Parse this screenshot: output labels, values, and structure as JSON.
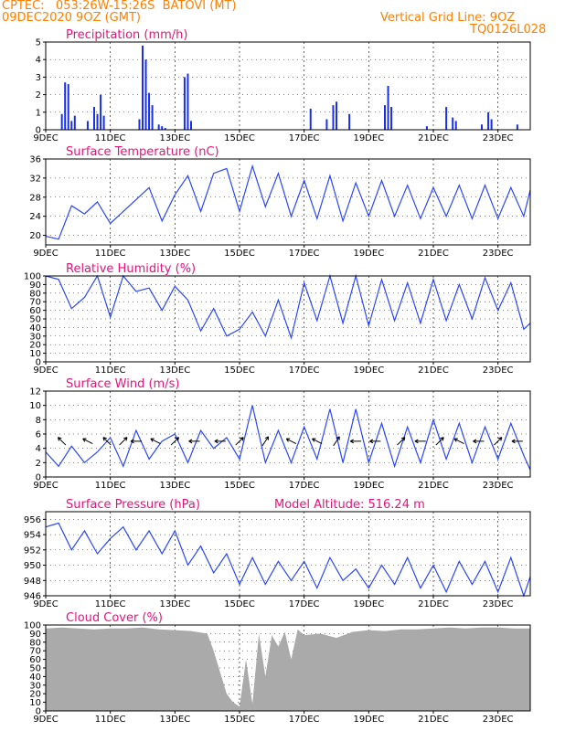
{
  "header": {
    "line1_left": "CPTEC:   053:26W-15:26S  BATOVI (MT)",
    "line2_left": "09DEC2020 9OZ (GMT)",
    "line1_right": "Vertical Grid Line: 9OZ",
    "line2_right": "TQ0126L028"
  },
  "x_axis": {
    "tick_labels": [
      "9DEC",
      "11DEC",
      "13DEC",
      "15DEC",
      "17DEC",
      "19DEC",
      "21DEC",
      "23DEC"
    ],
    "tick_days": [
      0,
      2,
      4,
      6,
      8,
      10,
      12,
      14
    ],
    "day_min": 0,
    "day_max": 15
  },
  "chart_data": [
    {
      "type": "bar",
      "title": "Precipitation (mm/h)",
      "ylim": [
        0,
        5
      ],
      "yticks": [
        "0",
        "1",
        "2",
        "3",
        "4",
        "5"
      ],
      "x_days": [
        0.5,
        0.6,
        0.7,
        0.8,
        0.9,
        1.3,
        1.5,
        1.6,
        1.7,
        1.8,
        2.9,
        3.0,
        3.1,
        3.2,
        3.3,
        3.5,
        3.6,
        3.7,
        4.3,
        4.4,
        4.5,
        8.2,
        8.7,
        8.9,
        9.0,
        9.4,
        10.5,
        10.6,
        10.7,
        11.8,
        12.4,
        12.6,
        12.7,
        13.5,
        13.7,
        13.8,
        14.6
      ],
      "values": [
        0.9,
        2.7,
        2.6,
        0.5,
        0.8,
        0.5,
        1.3,
        0.9,
        2.0,
        0.8,
        0.6,
        4.8,
        4.0,
        2.1,
        1.4,
        0.3,
        0.2,
        0.1,
        3.0,
        3.2,
        0.5,
        1.2,
        0.6,
        1.4,
        1.6,
        0.9,
        1.4,
        2.5,
        1.3,
        0.2,
        1.3,
        0.7,
        0.5,
        0.3,
        1.0,
        0.6,
        0.3
      ]
    },
    {
      "type": "line",
      "title": "Surface Temperature (nC)",
      "ylim": [
        18,
        36
      ],
      "yticks": [
        "20",
        "24",
        "28",
        "32",
        "36"
      ],
      "x_days": [
        0,
        0.4,
        0.8,
        1.2,
        1.6,
        2.0,
        2.4,
        2.8,
        3.2,
        3.6,
        4.0,
        4.4,
        4.8,
        5.2,
        5.6,
        6.0,
        6.4,
        6.8,
        7.2,
        7.6,
        8.0,
        8.4,
        8.8,
        9.2,
        9.6,
        10.0,
        10.4,
        10.8,
        11.2,
        11.6,
        12.0,
        12.4,
        12.8,
        13.2,
        13.6,
        14.0,
        14.4,
        14.8,
        15.0
      ],
      "values": [
        19.8,
        19.2,
        26.2,
        24.5,
        27.0,
        22.5,
        25.0,
        27.5,
        30.0,
        23.0,
        28.5,
        32.5,
        25.0,
        33.0,
        34.0,
        25.0,
        34.5,
        26.0,
        33.0,
        24.0,
        31.5,
        23.5,
        32.5,
        23.0,
        31.0,
        24.0,
        31.5,
        24.0,
        30.5,
        23.5,
        30.0,
        24.0,
        30.5,
        23.5,
        30.5,
        23.5,
        30.0,
        24.0,
        29.5
      ]
    },
    {
      "type": "line",
      "title": "Relative Humidity (%)",
      "ylim": [
        0,
        100
      ],
      "yticks": [
        "0",
        "10",
        "20",
        "30",
        "40",
        "50",
        "60",
        "70",
        "80",
        "90",
        "100"
      ],
      "x_days": [
        0,
        0.4,
        0.8,
        1.2,
        1.6,
        2.0,
        2.4,
        2.8,
        3.2,
        3.6,
        4.0,
        4.4,
        4.8,
        5.2,
        5.6,
        6.0,
        6.4,
        6.8,
        7.2,
        7.6,
        8.0,
        8.4,
        8.8,
        9.2,
        9.6,
        10.0,
        10.4,
        10.8,
        11.2,
        11.6,
        12.0,
        12.4,
        12.8,
        13.2,
        13.6,
        14.0,
        14.4,
        14.8,
        15.0
      ],
      "values": [
        100,
        96,
        62,
        75,
        100,
        52,
        100,
        82,
        86,
        60,
        88,
        72,
        36,
        62,
        30,
        38,
        58,
        30,
        72,
        28,
        92,
        48,
        100,
        45,
        100,
        42,
        96,
        48,
        92,
        45,
        96,
        48,
        90,
        50,
        98,
        60,
        92,
        38,
        45
      ]
    },
    {
      "type": "line",
      "title": "Surface Wind (m/s)",
      "ylim": [
        0,
        12
      ],
      "yticks": [
        "0",
        "2",
        "4",
        "6",
        "8",
        "10",
        "12"
      ],
      "x_days": [
        0,
        0.4,
        0.8,
        1.2,
        1.6,
        2.0,
        2.4,
        2.8,
        3.2,
        3.6,
        4.0,
        4.4,
        4.8,
        5.2,
        5.6,
        6.0,
        6.4,
        6.8,
        7.2,
        7.6,
        8.0,
        8.4,
        8.8,
        9.2,
        9.6,
        10.0,
        10.4,
        10.8,
        11.2,
        11.6,
        12.0,
        12.4,
        12.8,
        13.2,
        13.6,
        14.0,
        14.4,
        14.8,
        15.0
      ],
      "values": [
        3.5,
        1.5,
        4.3,
        2.0,
        3.5,
        5.5,
        1.5,
        6.5,
        2.5,
        5.0,
        6.0,
        2.0,
        6.5,
        4.0,
        5.5,
        2.5,
        10.0,
        2.0,
        6.5,
        2.0,
        7.0,
        2.5,
        9.5,
        2.0,
        9.5,
        2.0,
        7.5,
        1.5,
        7.0,
        2.0,
        8.0,
        2.5,
        7.5,
        2.0,
        7.0,
        2.5,
        7.5,
        3.0,
        1.0
      ],
      "arrows": [
        {
          "day": 0.5,
          "u": -1,
          "v": 1
        },
        {
          "day": 1.3,
          "u": -1,
          "v": 0.5
        },
        {
          "day": 1.9,
          "u": -1,
          "v": 1
        },
        {
          "day": 2.4,
          "u": 1,
          "v": 1
        },
        {
          "day": 2.8,
          "u": -1,
          "v": 0
        },
        {
          "day": 3.4,
          "u": -1,
          "v": 0.5
        },
        {
          "day": 4.0,
          "u": 1,
          "v": 1
        },
        {
          "day": 4.6,
          "u": -1,
          "v": 0
        },
        {
          "day": 5.4,
          "u": -1,
          "v": 0
        },
        {
          "day": 6.0,
          "u": 1,
          "v": 1
        },
        {
          "day": 6.8,
          "u": 1,
          "v": 1.5
        },
        {
          "day": 7.6,
          "u": -1,
          "v": 0.5
        },
        {
          "day": 8.4,
          "u": -1,
          "v": 0.5
        },
        {
          "day": 9.0,
          "u": 1,
          "v": 1.5
        },
        {
          "day": 9.6,
          "u": -1,
          "v": 0
        },
        {
          "day": 10.2,
          "u": -1,
          "v": 0
        },
        {
          "day": 11.0,
          "u": 1,
          "v": 1
        },
        {
          "day": 11.6,
          "u": -1,
          "v": 0
        },
        {
          "day": 12.2,
          "u": 1,
          "v": 1
        },
        {
          "day": 12.8,
          "u": -1,
          "v": 0.5
        },
        {
          "day": 13.4,
          "u": -1,
          "v": 0
        },
        {
          "day": 14.0,
          "u": 1,
          "v": 1
        },
        {
          "day": 14.6,
          "u": -1,
          "v": 0
        }
      ]
    },
    {
      "type": "line",
      "title": "Surface Pressure (hPa)",
      "subtitle": "Model Altitude: 516.24 m",
      "ylim": [
        946,
        957
      ],
      "yticks": [
        "946",
        "948",
        "950",
        "952",
        "954",
        "956"
      ],
      "x_days": [
        0,
        0.4,
        0.8,
        1.2,
        1.6,
        2.0,
        2.4,
        2.8,
        3.2,
        3.6,
        4.0,
        4.4,
        4.8,
        5.2,
        5.6,
        6.0,
        6.4,
        6.8,
        7.2,
        7.6,
        8.0,
        8.4,
        8.8,
        9.2,
        9.6,
        10.0,
        10.4,
        10.8,
        11.2,
        11.6,
        12.0,
        12.4,
        12.8,
        13.2,
        13.6,
        14.0,
        14.4,
        14.8,
        15.0
      ],
      "values": [
        955.0,
        955.5,
        952.0,
        954.5,
        951.5,
        953.5,
        955.0,
        952.0,
        954.5,
        951.5,
        954.5,
        950.0,
        952.5,
        949.0,
        951.5,
        947.5,
        951.0,
        947.5,
        950.5,
        948.0,
        950.5,
        947.0,
        951.0,
        948.0,
        949.5,
        947.0,
        950.0,
        947.5,
        951.0,
        947.0,
        950.0,
        946.5,
        950.5,
        947.5,
        950.5,
        946.5,
        951.0,
        946.0,
        948.5
      ]
    },
    {
      "type": "area",
      "title": "Cloud Cover (%)",
      "ylim": [
        0,
        100
      ],
      "yticks": [
        "0",
        "10",
        "20",
        "30",
        "40",
        "50",
        "60",
        "70",
        "80",
        "90",
        "100"
      ],
      "x_days": [
        0,
        0.5,
        1.0,
        1.5,
        2.0,
        2.5,
        3.0,
        3.5,
        4.0,
        4.5,
        5.0,
        5.2,
        5.4,
        5.6,
        5.8,
        6.0,
        6.2,
        6.4,
        6.6,
        6.8,
        7.0,
        7.2,
        7.4,
        7.6,
        7.8,
        8.0,
        8.5,
        9.0,
        9.5,
        10.0,
        10.5,
        11.0,
        11.5,
        12.0,
        12.5,
        13.0,
        13.5,
        14.0,
        14.5,
        15.0
      ],
      "values": [
        96,
        97,
        96,
        95,
        96,
        96,
        97,
        95,
        94,
        93,
        90,
        70,
        45,
        20,
        10,
        5,
        60,
        8,
        90,
        40,
        88,
        75,
        92,
        60,
        95,
        88,
        90,
        85,
        92,
        94,
        93,
        95,
        95,
        96,
        97,
        96,
        97,
        97,
        96,
        96
      ]
    }
  ]
}
